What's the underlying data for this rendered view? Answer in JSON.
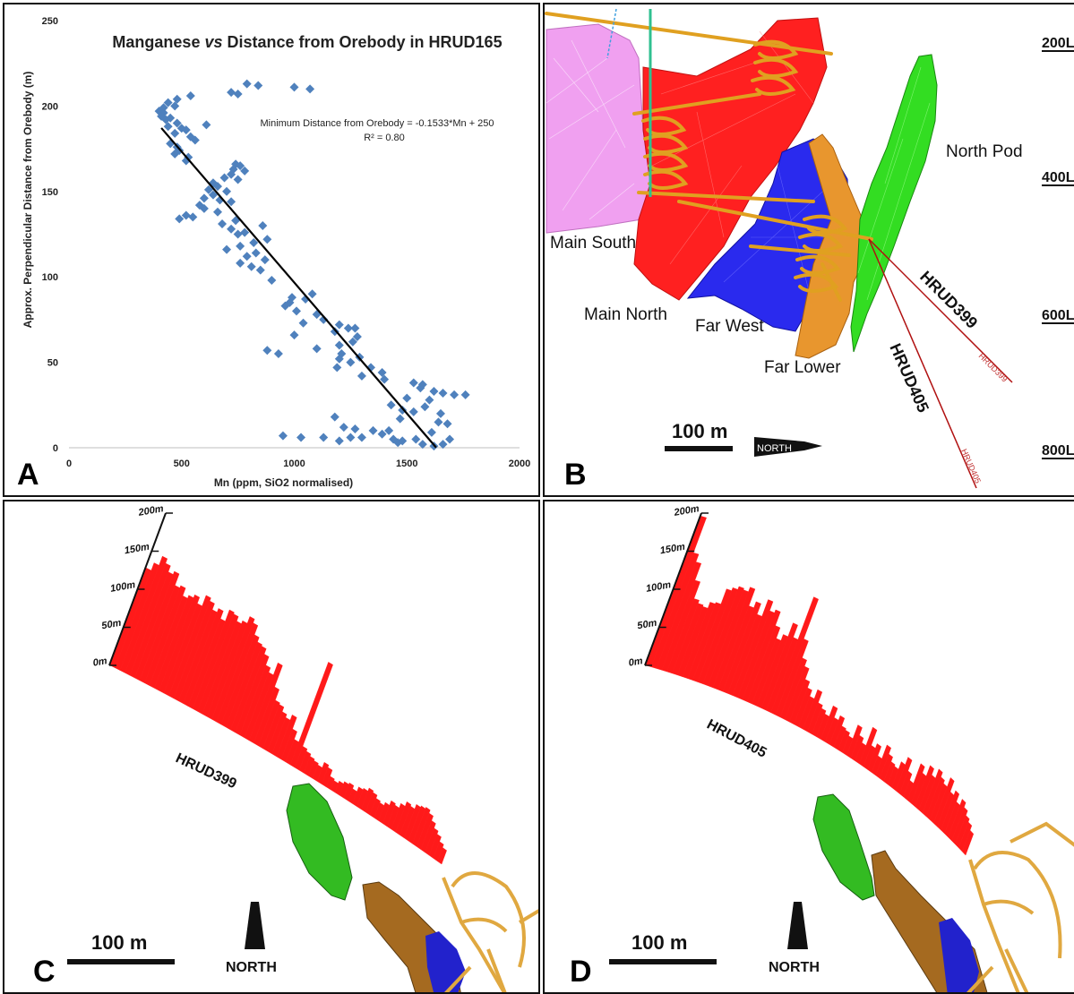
{
  "chart_data": {
    "type": "scatter",
    "title_parts": [
      "Manganese ",
      "vs",
      " Distance from Orebody in HRUD165"
    ],
    "xlabel": "Mn (ppm, SiO2 normalised)",
    "ylabel": "Approx. Perpendicular Distance from Orebody (m)",
    "xlim": [
      0,
      2000
    ],
    "ylim": [
      0,
      250
    ],
    "xticks": [
      0,
      500,
      1000,
      1500,
      2000
    ],
    "yticks": [
      0,
      50,
      100,
      150,
      200,
      250
    ],
    "grid": false,
    "marker_color": "#4f81bd",
    "trendline": {
      "equation": "Minimum Distance from Orebody = -0.1533*Mn + 250",
      "r2_label": "R² = 0.80",
      "slope": -0.1533,
      "intercept": 250,
      "x_range": [
        410,
        1630
      ],
      "color": "#000000"
    },
    "points": [
      [
        790,
        213
      ],
      [
        840,
        212
      ],
      [
        1000,
        211
      ],
      [
        1070,
        210
      ],
      [
        720,
        208
      ],
      [
        750,
        207
      ],
      [
        540,
        206
      ],
      [
        480,
        204
      ],
      [
        440,
        202
      ],
      [
        470,
        200
      ],
      [
        420,
        199
      ],
      [
        400,
        197
      ],
      [
        420,
        196
      ],
      [
        410,
        194
      ],
      [
        450,
        193
      ],
      [
        430,
        192
      ],
      [
        480,
        190
      ],
      [
        610,
        189
      ],
      [
        440,
        188
      ],
      [
        500,
        187
      ],
      [
        520,
        186
      ],
      [
        470,
        184
      ],
      [
        540,
        182
      ],
      [
        560,
        180
      ],
      [
        450,
        178
      ],
      [
        480,
        176
      ],
      [
        490,
        174
      ],
      [
        470,
        172
      ],
      [
        530,
        170
      ],
      [
        520,
        168
      ],
      [
        740,
        166
      ],
      [
        760,
        165
      ],
      [
        730,
        163
      ],
      [
        780,
        162
      ],
      [
        720,
        160
      ],
      [
        690,
        158
      ],
      [
        750,
        157
      ],
      [
        640,
        155
      ],
      [
        660,
        153
      ],
      [
        620,
        151
      ],
      [
        700,
        150
      ],
      [
        640,
        148
      ],
      [
        600,
        146
      ],
      [
        670,
        145
      ],
      [
        720,
        144
      ],
      [
        580,
        142
      ],
      [
        600,
        140
      ],
      [
        660,
        138
      ],
      [
        520,
        136
      ],
      [
        550,
        135
      ],
      [
        490,
        134
      ],
      [
        740,
        133
      ],
      [
        680,
        131
      ],
      [
        860,
        130
      ],
      [
        720,
        128
      ],
      [
        780,
        126
      ],
      [
        750,
        125
      ],
      [
        880,
        122
      ],
      [
        820,
        120
      ],
      [
        760,
        118
      ],
      [
        700,
        116
      ],
      [
        830,
        114
      ],
      [
        790,
        112
      ],
      [
        870,
        110
      ],
      [
        760,
        108
      ],
      [
        810,
        106
      ],
      [
        850,
        104
      ],
      [
        900,
        98
      ],
      [
        1080,
        90
      ],
      [
        990,
        88
      ],
      [
        1050,
        87
      ],
      [
        980,
        85
      ],
      [
        960,
        83
      ],
      [
        1010,
        80
      ],
      [
        1100,
        78
      ],
      [
        1130,
        75
      ],
      [
        1040,
        73
      ],
      [
        1200,
        72
      ],
      [
        1240,
        70
      ],
      [
        1270,
        70
      ],
      [
        1180,
        68
      ],
      [
        1000,
        66
      ],
      [
        1280,
        65
      ],
      [
        1260,
        62
      ],
      [
        1200,
        60
      ],
      [
        1100,
        58
      ],
      [
        880,
        57
      ],
      [
        930,
        55
      ],
      [
        1210,
        55
      ],
      [
        1290,
        53
      ],
      [
        1200,
        52
      ],
      [
        1250,
        50
      ],
      [
        1190,
        47
      ],
      [
        1340,
        47
      ],
      [
        1390,
        44
      ],
      [
        1300,
        42
      ],
      [
        1400,
        40
      ],
      [
        1530,
        38
      ],
      [
        1570,
        37
      ],
      [
        1560,
        35
      ],
      [
        1620,
        33
      ],
      [
        1660,
        32
      ],
      [
        1710,
        31
      ],
      [
        1760,
        31
      ],
      [
        1500,
        29
      ],
      [
        1600,
        28
      ],
      [
        1430,
        25
      ],
      [
        1580,
        24
      ],
      [
        1480,
        22
      ],
      [
        1530,
        21
      ],
      [
        1650,
        20
      ],
      [
        1180,
        18
      ],
      [
        1470,
        17
      ],
      [
        1640,
        15
      ],
      [
        1680,
        14
      ],
      [
        1220,
        12
      ],
      [
        1270,
        11
      ],
      [
        1350,
        10
      ],
      [
        1420,
        10
      ],
      [
        1610,
        9
      ],
      [
        1390,
        8
      ],
      [
        950,
        7
      ],
      [
        1030,
        6
      ],
      [
        1130,
        6
      ],
      [
        1250,
        6
      ],
      [
        1440,
        5
      ],
      [
        1540,
        5
      ],
      [
        1690,
        5
      ],
      [
        1200,
        4
      ],
      [
        1460,
        3
      ],
      [
        1570,
        2
      ],
      [
        1620,
        1
      ],
      [
        1660,
        2
      ],
      [
        1480,
        4
      ],
      [
        1300,
        6
      ]
    ]
  },
  "panel_labels": {
    "a": "A",
    "b": "B",
    "c": "C",
    "d": "D"
  },
  "panelB": {
    "bodies": {
      "main_south": "Main South",
      "main_north": "Main North",
      "far_west": "Far West",
      "far_lower": "Far Lower",
      "north_pod": "North Pod"
    },
    "holes": {
      "hrud399": "HRUD399",
      "hrud405": "HRUD405",
      "hrud399_small": "HRUD399",
      "hrud405_small": "HRUD405"
    },
    "levels": [
      "200L",
      "400L",
      "600L",
      "800L"
    ],
    "scale_label": "100 m",
    "north_label": "NORTH",
    "colors": {
      "main_south": "#f0a0f0",
      "main_north": "#ff2020",
      "far_west": "#2a2aee",
      "far_lower": "#e8962e",
      "north_pod": "#33dd22",
      "workings": "#e0a020",
      "drill": "#b01010"
    }
  },
  "panelC": {
    "hole": "HRUD399",
    "scale_label": "100 m",
    "north_label": "NORTH",
    "axis_ticks": [
      "0m",
      "50m",
      "100m",
      "150m",
      "200m"
    ],
    "bar_color": "#ff1a1a",
    "bars": [
      128,
      138,
      150,
      144,
      136,
      140,
      125,
      128,
      118,
      122,
      126,
      118,
      132,
      128,
      120,
      125,
      115,
      130,
      128,
      122,
      126,
      135,
      130,
      118,
      112,
      110,
      103,
      92,
      86,
      102,
      74,
      60,
      58,
      52,
      48,
      55,
      40,
      30,
      135,
      28,
      25,
      22,
      20,
      18,
      25,
      22,
      14,
      12,
      15,
      18,
      20,
      16,
      22,
      24,
      28,
      26,
      22,
      20,
      24,
      30,
      28,
      34,
      40,
      38,
      44,
      46,
      48,
      44,
      38,
      32,
      28,
      22,
      18
    ]
  },
  "panelD": {
    "hole": "HRUD405",
    "scale_label": "100 m",
    "north_label": "NORTH",
    "axis_ticks": [
      "0m",
      "50m",
      "100m",
      "150m",
      "200m"
    ],
    "bar_color": "#ff1a1a",
    "bars": [
      196,
      150,
      140,
      118,
      96,
      92,
      90,
      98,
      100,
      120,
      124,
      128,
      126,
      132,
      110,
      118,
      104,
      126,
      114,
      118,
      100,
      86,
      94,
      112,
      96,
      152,
      100,
      78,
      70,
      56,
      48,
      40,
      52,
      38,
      34,
      30,
      44,
      32,
      38,
      28,
      26,
      22,
      40,
      30,
      24,
      48,
      28,
      34,
      22,
      40,
      32,
      26,
      24,
      34,
      44,
      30,
      22,
      48,
      40,
      54,
      46,
      58,
      52,
      48,
      60,
      46,
      52,
      42,
      50,
      44,
      38,
      34,
      28
    ]
  }
}
